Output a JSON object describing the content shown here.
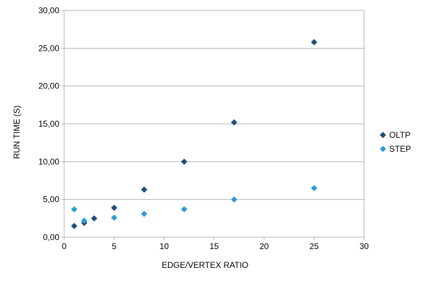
{
  "chart_data": {
    "type": "scatter",
    "title": "",
    "xlabel": "EDGE/VERTEX RATIO",
    "ylabel": "RUN TIME (S)",
    "xlim": [
      0,
      30
    ],
    "ylim": [
      0,
      30
    ],
    "x_ticks": [
      0,
      5,
      10,
      15,
      20,
      25,
      30
    ],
    "x_tick_labels": [
      "0",
      "5",
      "10",
      "15",
      "20",
      "25",
      "30"
    ],
    "y_ticks": [
      0,
      5,
      10,
      15,
      20,
      25,
      30
    ],
    "y_tick_labels": [
      "0,00",
      "5,00",
      "10,00",
      "15,00",
      "20,00",
      "25,00",
      "30,00"
    ],
    "grid": "horizontal-only",
    "legend_position": "right",
    "marker": "diamond",
    "series": [
      {
        "name": "OLTP",
        "color": "#1F4E79",
        "points": [
          [
            1,
            1.5
          ],
          [
            2,
            1.9
          ],
          [
            3,
            2.5
          ],
          [
            5,
            3.9
          ],
          [
            8,
            6.3
          ],
          [
            12,
            10.0
          ],
          [
            17,
            15.2
          ],
          [
            25,
            25.8
          ]
        ]
      },
      {
        "name": "STEP",
        "color": "#2E9BD9",
        "points": [
          [
            1,
            3.7
          ],
          [
            2,
            2.2
          ],
          [
            5,
            2.6
          ],
          [
            8,
            3.1
          ],
          [
            12,
            3.7
          ],
          [
            17,
            5.0
          ],
          [
            25,
            6.5
          ]
        ]
      }
    ]
  },
  "colors": {
    "grid": "#B3B3B3",
    "axis_line": "#B3B3B3",
    "tick_text": "#000000",
    "background": "#FFFFFF"
  }
}
